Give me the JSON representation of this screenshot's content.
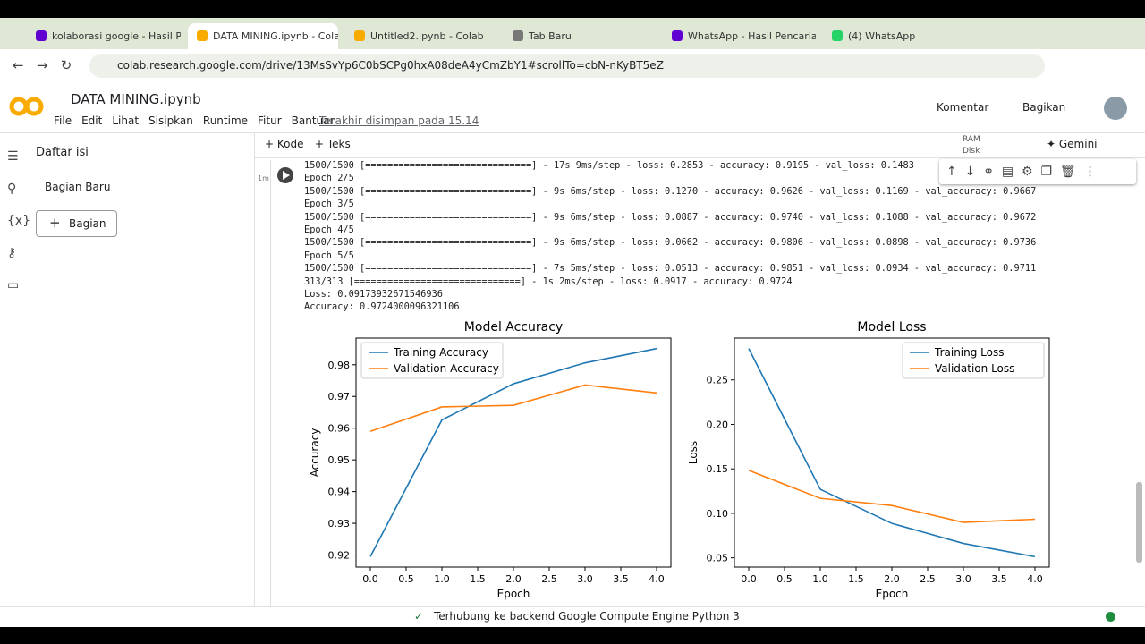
{
  "browser": {
    "tabs": [
      "kolaborasi google - Hasil P",
      "DATA MINING.ipynb - Cola",
      "Untitled2.ipynb - Colab",
      "Tab Baru",
      "WhatsApp - Hasil Pencaria",
      "(4) WhatsApp"
    ],
    "url": "colab.research.google.com/drive/13MsSvYp6C0bSCPg0hxA08deA4yCmZbY1#scrollTo=cbN-nKyBT5eZ"
  },
  "header": {
    "title": "DATA MINING.ipynb",
    "menu": [
      "File",
      "Edit",
      "Lihat",
      "Sisipkan",
      "Runtime",
      "Fitur",
      "Bantuan"
    ],
    "saved": "Terakhir disimpan pada 15.14",
    "comment": "Komentar",
    "share": "Bagikan"
  },
  "toolbar": {
    "code": "Kode",
    "text": "Teks",
    "ram": "RAM",
    "disk": "Disk",
    "gemini": "Gemini"
  },
  "sidebar": {
    "title": "Daftar isi",
    "item": "Bagian Baru",
    "button": "Bagian"
  },
  "cell": {
    "time": "1m",
    "output": [
      "1500/1500 [==============================] - 17s 9ms/step - loss: 0.2853 - accuracy: 0.9195 - val_loss: 0.1483",
      "Epoch 2/5",
      "1500/1500 [==============================] - 9s 6ms/step - loss: 0.1270 - accuracy: 0.9626 - val_loss: 0.1169 - val_accuracy: 0.9667",
      "Epoch 3/5",
      "1500/1500 [==============================] - 9s 6ms/step - loss: 0.0887 - accuracy: 0.9740 - val_loss: 0.1088 - val_accuracy: 0.9672",
      "Epoch 4/5",
      "1500/1500 [==============================] - 9s 6ms/step - loss: 0.0662 - accuracy: 0.9806 - val_loss: 0.0898 - val_accuracy: 0.9736",
      "Epoch 5/5",
      "1500/1500 [==============================] - 7s 5ms/step - loss: 0.0513 - accuracy: 0.9851 - val_loss: 0.0934 - val_accuracy: 0.9711",
      "313/313 [==============================] - 1s 2ms/step - loss: 0.0917 - accuracy: 0.9724",
      "Loss: 0.09173932671546936",
      "Accuracy: 0.9724000096321106"
    ]
  },
  "chart_data": [
    {
      "type": "line",
      "title": "Model Accuracy",
      "x_label": "Epoch",
      "y_label": "Accuracy",
      "x": [
        0,
        1,
        2,
        3,
        4
      ],
      "series": [
        {
          "name": "Training Accuracy",
          "color": "#1f77b4",
          "values": [
            0.9195,
            0.9626,
            0.974,
            0.9806,
            0.9851
          ]
        },
        {
          "name": "Validation Accuracy",
          "color": "#ff7f0e",
          "values": [
            0.959,
            0.9667,
            0.9672,
            0.9736,
            0.9711
          ]
        }
      ],
      "xlim": [
        -0.2,
        4.2
      ],
      "xticks": [
        {
          "value": 0,
          "label": "0.0"
        },
        0.5,
        {
          "value": 1,
          "label": "1.0"
        },
        1.5,
        {
          "value": 2,
          "label": "2.0"
        },
        2.5,
        {
          "value": 3,
          "label": "3.0"
        },
        3.5,
        {
          "value": 4,
          "label": "4.0"
        }
      ],
      "ylim": [
        0.9162,
        0.9884
      ],
      "yticks": [
        0.92,
        0.93,
        0.94,
        0.95,
        0.96,
        0.97,
        0.98
      ],
      "legend": "upper left"
    },
    {
      "type": "line",
      "title": "Model Loss",
      "x_label": "Epoch",
      "y_label": "Loss",
      "x": [
        0,
        1,
        2,
        3,
        4
      ],
      "series": [
        {
          "name": "Training Loss",
          "color": "#1f77b4",
          "values": [
            0.2853,
            0.127,
            0.0887,
            0.0662,
            0.0513
          ]
        },
        {
          "name": "Validation Loss",
          "color": "#ff7f0e",
          "values": [
            0.1483,
            0.1169,
            0.1088,
            0.0898,
            0.0934
          ]
        }
      ],
      "xlim": [
        -0.2,
        4.2
      ],
      "xticks": [
        {
          "value": 0,
          "label": "0.0"
        },
        0.5,
        {
          "value": 1,
          "label": "1.0"
        },
        1.5,
        {
          "value": 2,
          "label": "2.0"
        },
        2.5,
        {
          "value": 3,
          "label": "3.0"
        },
        3.5,
        {
          "value": 4,
          "label": "4.0"
        }
      ],
      "ylim": [
        0.0396,
        0.297
      ],
      "yticks": [
        0.05,
        {
          "value": 0.1,
          "label": "0.10"
        },
        0.15,
        {
          "value": 0.2,
          "label": "0.20"
        },
        0.25
      ],
      "legend": "upper right"
    }
  ],
  "status": "Terhubung ke backend Google Compute Engine Python 3"
}
